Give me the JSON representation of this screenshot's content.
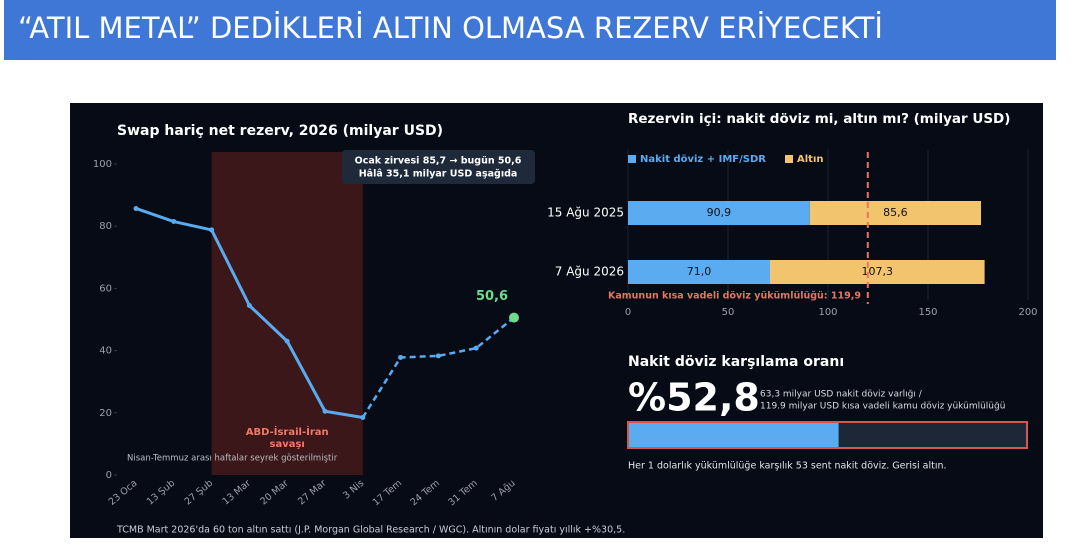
{
  "banner": {
    "title": "“ATIL METAL” DEDİKLERİ ALTIN OLMASA REZERV ERİYECEKTİ"
  },
  "chart_data": [
    {
      "type": "line",
      "title": "Swap hariç net rezerv, 2026 (milyar USD)",
      "categories": [
        "23 Oca",
        "13 Şub",
        "27 Şub",
        "13 Mar",
        "20 Mar",
        "27 Mar",
        "3 Nis",
        "17 Tem",
        "24 Tem",
        "31 Tem",
        "7 Ağu"
      ],
      "series": [
        {
          "color": "#5aaaf0",
          "values": [
            85.7,
            81.5,
            78.8,
            54.5,
            43.0,
            20.5,
            18.5,
            37.8,
            38.3,
            40.8,
            50.6
          ],
          "value_labels": [
            null,
            null,
            null,
            null,
            null,
            null,
            null,
            null,
            null,
            null,
            "50,6"
          ]
        }
      ],
      "dashed_from": "3 Nis",
      "end_marker_color": "#6fdc8c",
      "ylim": [
        0,
        100
      ],
      "yticks": [
        0,
        20,
        40,
        60,
        80,
        100
      ],
      "shade": {
        "start": "27 Şub",
        "end": "3 Nis",
        "color": "#3b1719",
        "label": [
          "ABD-İsrail-İran",
          "savaşı"
        ]
      },
      "annotation": [
        "Ocak zirvesi 85,7  →  bugün 50,6",
        "Hâlâ 35,1 milyar USD aşağıda"
      ],
      "note": "Nisan-Temmuz arası haftalar seyrek gösterilmiştir"
    },
    {
      "type": "bar",
      "orientation": "horizontal",
      "stacked": true,
      "title": "Rezervin içi: nakit döviz mi, altın mı? (milyar USD)",
      "categories": [
        "15 Ağu 2025",
        "7 Ağu 2026"
      ],
      "series": [
        {
          "name": "Nakit döviz + IMF/SDR",
          "color": "#5aabf0",
          "values": [
            90.9,
            71.0
          ],
          "value_labels": [
            "90,9",
            "71,0"
          ]
        },
        {
          "name": "Altın",
          "color": "#f2c46d",
          "values": [
            85.6,
            107.3
          ],
          "value_labels": [
            "85,6",
            "107,3"
          ]
        }
      ],
      "xlim": [
        0,
        200
      ],
      "xticks": [
        0,
        50,
        100,
        150,
        200
      ],
      "grid": true,
      "reference_line": {
        "value": 119.9,
        "label": "Kamunun kısa vadeli döviz yükümlülüğü: 119,9",
        "color": "#e8745f"
      }
    },
    {
      "type": "progress",
      "title": "Nakit döviz karşılama oranı",
      "value": 52.8,
      "value_label": "%52,8",
      "xlim": [
        0,
        100
      ],
      "color": "#5aabf0",
      "border_color": "#d9534f",
      "detail": [
        "63,3 milyar USD nakit döviz varlığı /",
        "119.9 milyar USD kısa vadeli kamu döviz yükümlülüğü"
      ],
      "caption": "Her 1 dolarlık yükümlülüğe karşılık 53 sent nakit döviz. Gerisi altın."
    }
  ],
  "footnote": "TCMB Mart 2026'da 60 ton altın sattı (J.P. Morgan Global Research / WGC). Altının dolar fiyatı yıllık +%30,5."
}
